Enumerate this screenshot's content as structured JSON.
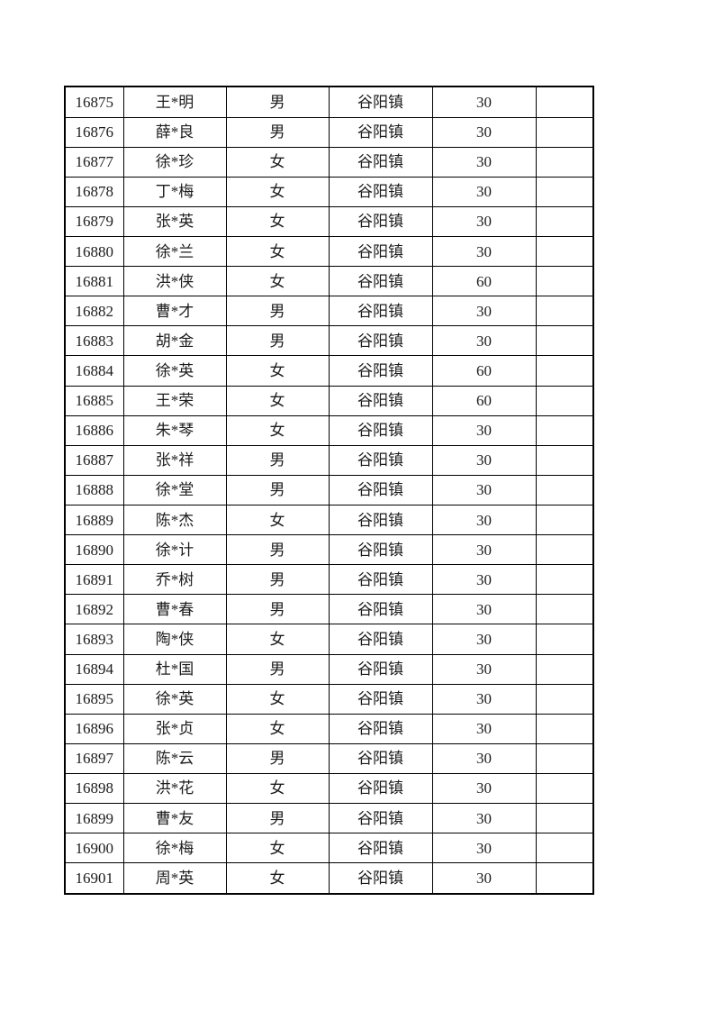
{
  "table": {
    "columns": [
      {
        "key": "id"
      },
      {
        "key": "name"
      },
      {
        "key": "gender"
      },
      {
        "key": "town"
      },
      {
        "key": "amount"
      },
      {
        "key": "blank"
      }
    ],
    "rows": [
      [
        "16875",
        "王*明",
        "男",
        "谷阳镇",
        "30",
        ""
      ],
      [
        "16876",
        "薛*良",
        "男",
        "谷阳镇",
        "30",
        ""
      ],
      [
        "16877",
        "徐*珍",
        "女",
        "谷阳镇",
        "30",
        ""
      ],
      [
        "16878",
        "丁*梅",
        "女",
        "谷阳镇",
        "30",
        ""
      ],
      [
        "16879",
        "张*英",
        "女",
        "谷阳镇",
        "30",
        ""
      ],
      [
        "16880",
        "徐*兰",
        "女",
        "谷阳镇",
        "30",
        ""
      ],
      [
        "16881",
        "洪*侠",
        "女",
        "谷阳镇",
        "60",
        ""
      ],
      [
        "16882",
        "曹*才",
        "男",
        "谷阳镇",
        "30",
        ""
      ],
      [
        "16883",
        "胡*金",
        "男",
        "谷阳镇",
        "30",
        ""
      ],
      [
        "16884",
        "徐*英",
        "女",
        "谷阳镇",
        "60",
        ""
      ],
      [
        "16885",
        "王*荣",
        "女",
        "谷阳镇",
        "60",
        ""
      ],
      [
        "16886",
        "朱*琴",
        "女",
        "谷阳镇",
        "30",
        ""
      ],
      [
        "16887",
        "张*祥",
        "男",
        "谷阳镇",
        "30",
        ""
      ],
      [
        "16888",
        "徐*堂",
        "男",
        "谷阳镇",
        "30",
        ""
      ],
      [
        "16889",
        "陈*杰",
        "女",
        "谷阳镇",
        "30",
        ""
      ],
      [
        "16890",
        "徐*计",
        "男",
        "谷阳镇",
        "30",
        ""
      ],
      [
        "16891",
        "乔*树",
        "男",
        "谷阳镇",
        "30",
        ""
      ],
      [
        "16892",
        "曹*春",
        "男",
        "谷阳镇",
        "30",
        ""
      ],
      [
        "16893",
        "陶*侠",
        "女",
        "谷阳镇",
        "30",
        ""
      ],
      [
        "16894",
        "杜*国",
        "男",
        "谷阳镇",
        "30",
        ""
      ],
      [
        "16895",
        "徐*英",
        "女",
        "谷阳镇",
        "30",
        ""
      ],
      [
        "16896",
        "张*贞",
        "女",
        "谷阳镇",
        "30",
        ""
      ],
      [
        "16897",
        "陈*云",
        "男",
        "谷阳镇",
        "30",
        ""
      ],
      [
        "16898",
        "洪*花",
        "女",
        "谷阳镇",
        "30",
        ""
      ],
      [
        "16899",
        "曹*友",
        "男",
        "谷阳镇",
        "30",
        ""
      ],
      [
        "16900",
        "徐*梅",
        "女",
        "谷阳镇",
        "30",
        ""
      ],
      [
        "16901",
        "周*英",
        "女",
        "谷阳镇",
        "30",
        ""
      ]
    ],
    "colors": {
      "border": "#000000",
      "text": "#1c1c1c",
      "background": "#ffffff"
    }
  }
}
